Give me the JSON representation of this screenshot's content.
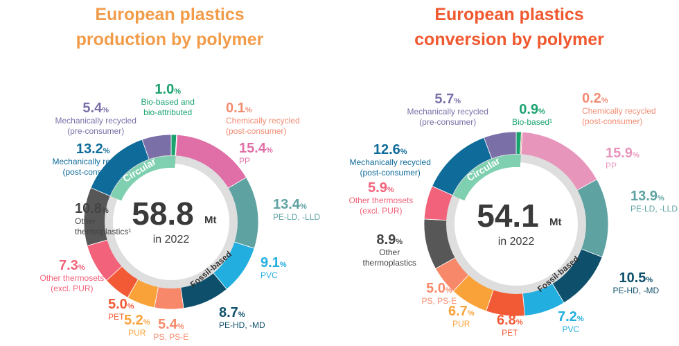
{
  "colors": {
    "title": [
      "#F29C4A",
      "#F0582F"
    ],
    "ring": "#DEDEDE",
    "center": "#FFFFFF",
    "center_text": "#3A3A3A",
    "circular_arc": "#7FD0B0"
  },
  "chart_data": [
    {
      "type": "pie",
      "title_line1": "European plastics",
      "title_line2": "production by polymer",
      "center_value": "58.8",
      "center_unit": "Mt",
      "center_sub": "in 2022",
      "inner_labels": {
        "circular": "Circular",
        "fossil": "Fossil-based"
      },
      "slices": [
        {
          "value": 1.0,
          "unit": "%",
          "name": "Bio-based and bio-attributed",
          "name_lines": [
            "Bio-based and",
            "bio-attributed"
          ],
          "color": "#1AA36F"
        },
        {
          "value": 0.1,
          "unit": "%",
          "name": "Chemically recycled (post-consumer)",
          "name_lines": [
            "Chemically recycled",
            "(post-consumer)"
          ],
          "color": "#F08C72"
        },
        {
          "value": 15.4,
          "unit": "%",
          "name": "PP",
          "name_lines": [
            "PP"
          ],
          "color": "#DF6FA6"
        },
        {
          "value": 13.4,
          "unit": "%",
          "name": "PE-LD, -LLD",
          "name_lines": [
            "PE-LD, -LLD"
          ],
          "color": "#5FA2A2"
        },
        {
          "value": 9.1,
          "unit": "%",
          "name": "PVC",
          "name_lines": [
            "PVC"
          ],
          "color": "#22AEDF"
        },
        {
          "value": 8.7,
          "unit": "%",
          "name": "PE-HD, -MD",
          "name_lines": [
            "PE-HD, -MD"
          ],
          "color": "#0E4F6B"
        },
        {
          "value": 5.4,
          "unit": "%",
          "name": "PS, PS-E",
          "name_lines": [
            "PS, PS-E"
          ],
          "color": "#F7896A"
        },
        {
          "value": 5.2,
          "unit": "%",
          "name": "PUR",
          "name_lines": [
            "PUR"
          ],
          "color": "#F9A23A"
        },
        {
          "value": 5.0,
          "unit": "%",
          "name": "PET",
          "name_lines": [
            "PET"
          ],
          "color": "#F25A36"
        },
        {
          "value": 7.3,
          "unit": "%",
          "name": "Other thermosets (excl. PUR)",
          "name_lines": [
            "Other thermosets",
            "(excl. PUR)"
          ],
          "color": "#F2627A"
        },
        {
          "value": 10.8,
          "unit": "%",
          "name": "Other thermoplastics",
          "name_lines": [
            "Other",
            "thermoplastics¹"
          ],
          "color": "#575757"
        },
        {
          "value": 13.2,
          "unit": "%",
          "name": "Mechanically recycled (post-consumer)",
          "name_lines": [
            "Mechanically recycled",
            "(post-consumer)"
          ],
          "color": "#0E6B9A"
        },
        {
          "value": 5.4,
          "unit": "%",
          "name": "Mechanically recycled (pre-consumer)",
          "name_lines": [
            "Mechanically recycled",
            "(pre-consumer)"
          ],
          "color": "#7B6FA8"
        }
      ]
    },
    {
      "type": "pie",
      "title_line1": "European plastics",
      "title_line2": "conversion by polymer",
      "center_value": "54.1",
      "center_unit": "Mt",
      "center_sub": "in 2022",
      "inner_labels": {
        "circular": "Circular",
        "fossil": "Fossil-based"
      },
      "slices": [
        {
          "value": 0.9,
          "unit": "%",
          "name": "Bio-based",
          "name_lines": [
            "Bio-based¹"
          ],
          "color": "#1AA36F"
        },
        {
          "value": 0.2,
          "unit": "%",
          "name": "Chemically recycled (post-consumer)",
          "name_lines": [
            "Chemically recycled",
            "(post-consumer)"
          ],
          "color": "#F08C72"
        },
        {
          "value": 15.9,
          "unit": "%",
          "name": "PP",
          "name_lines": [
            "PP"
          ],
          "color": "#E895BC"
        },
        {
          "value": 13.9,
          "unit": "%",
          "name": "PE-LD, -LLD",
          "name_lines": [
            "PE-LD, -LLD"
          ],
          "color": "#5FA2A2"
        },
        {
          "value": 10.5,
          "unit": "%",
          "name": "PE-HD, -MD",
          "name_lines": [
            "PE-HD, -MD"
          ],
          "color": "#0E4F6B"
        },
        {
          "value": 7.2,
          "unit": "%",
          "name": "PVC",
          "name_lines": [
            "PVC"
          ],
          "color": "#22AEDF"
        },
        {
          "value": 6.8,
          "unit": "%",
          "name": "PET",
          "name_lines": [
            "PET"
          ],
          "color": "#F25A36"
        },
        {
          "value": 6.7,
          "unit": "%",
          "name": "PUR",
          "name_lines": [
            "PUR"
          ],
          "color": "#F9A23A"
        },
        {
          "value": 5.0,
          "unit": "%",
          "name": "PS, PS-E",
          "name_lines": [
            "PS, PS-E"
          ],
          "color": "#F7896A"
        },
        {
          "value": 8.9,
          "unit": "%",
          "name": "Other thermoplastics",
          "name_lines": [
            "Other",
            "thermoplastics"
          ],
          "color": "#575757"
        },
        {
          "value": 5.9,
          "unit": "%",
          "name": "Other thermosets (excl. PUR)",
          "name_lines": [
            "Other thermosets",
            "(excl. PUR)"
          ],
          "color": "#F2627A"
        },
        {
          "value": 12.6,
          "unit": "%",
          "name": "Mechanically recycled (post-consumer)",
          "name_lines": [
            "Mechanically recycled",
            "(post-consumer)"
          ],
          "color": "#0E6B9A"
        },
        {
          "value": 5.7,
          "unit": "%",
          "name": "Mechanically recycled (pre-consumer)",
          "name_lines": [
            "Mechanically recycled",
            "(pre-consumer)"
          ],
          "color": "#7B6FA8"
        }
      ]
    }
  ]
}
